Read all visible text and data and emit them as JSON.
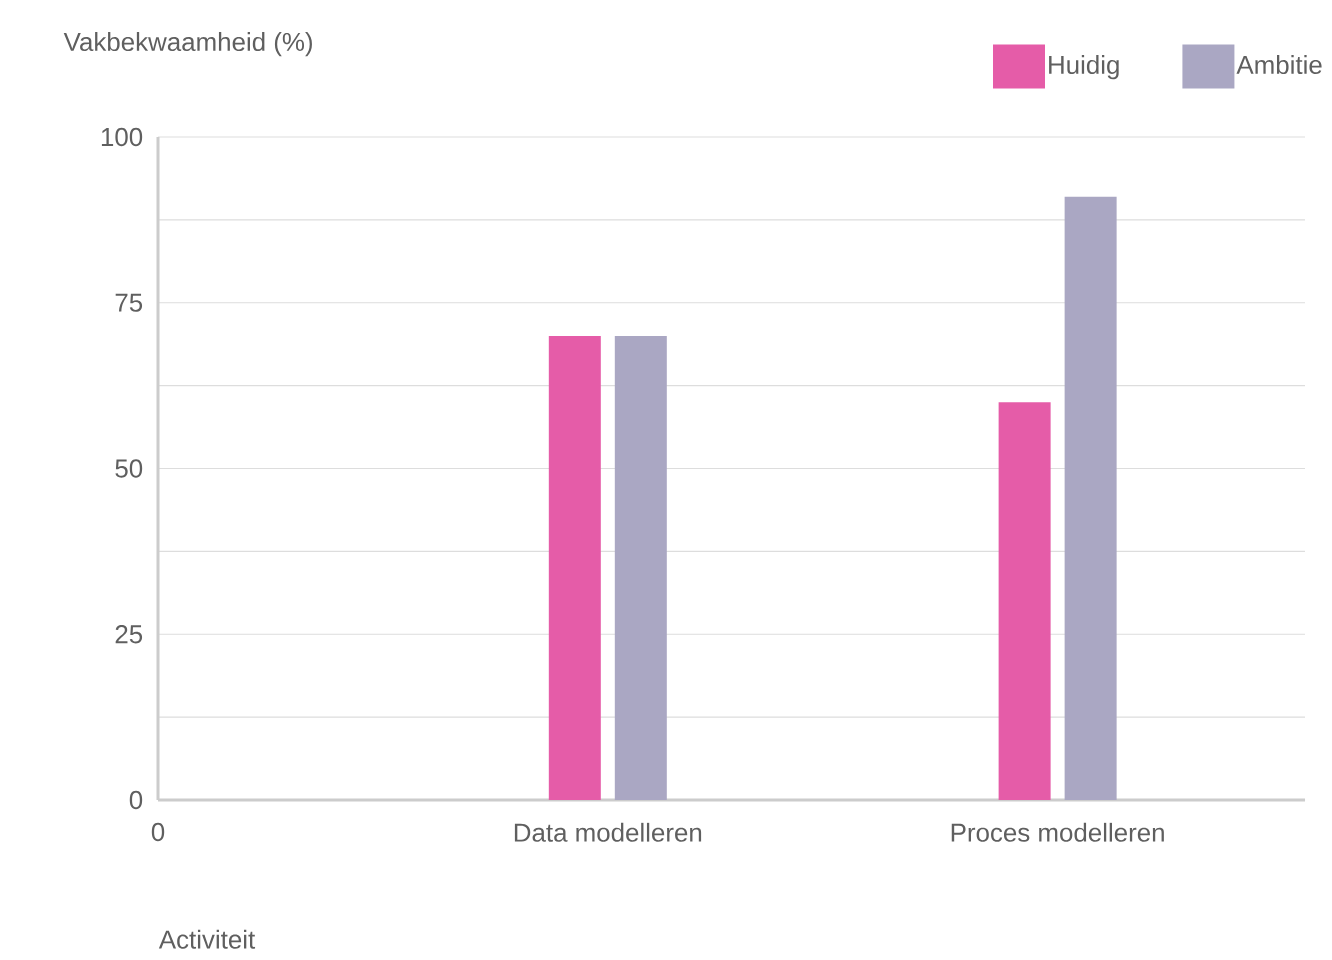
{
  "chart_data": {
    "type": "bar",
    "xlabel": "Activiteit",
    "ylabel": "Vakbekwaamheid (%)",
    "categories": [
      "0",
      "Data modelleren",
      "Proces modelleren"
    ],
    "series": [
      {
        "name": "Huidig",
        "color": "#e55ca8",
        "values": [
          null,
          70,
          60
        ]
      },
      {
        "name": "Ambitie",
        "color": "#aaa7c3",
        "values": [
          null,
          70,
          91
        ]
      }
    ],
    "ylim": [
      0,
      100
    ],
    "yticks": [
      0,
      {
        "value": 12.5,
        "label": null
      },
      25,
      {
        "value": 37.5,
        "label": null
      },
      50,
      {
        "value": 62.5,
        "label": null
      },
      75,
      {
        "value": 87.5,
        "label": null
      },
      100
    ],
    "grid": "y",
    "legend": "top right"
  }
}
